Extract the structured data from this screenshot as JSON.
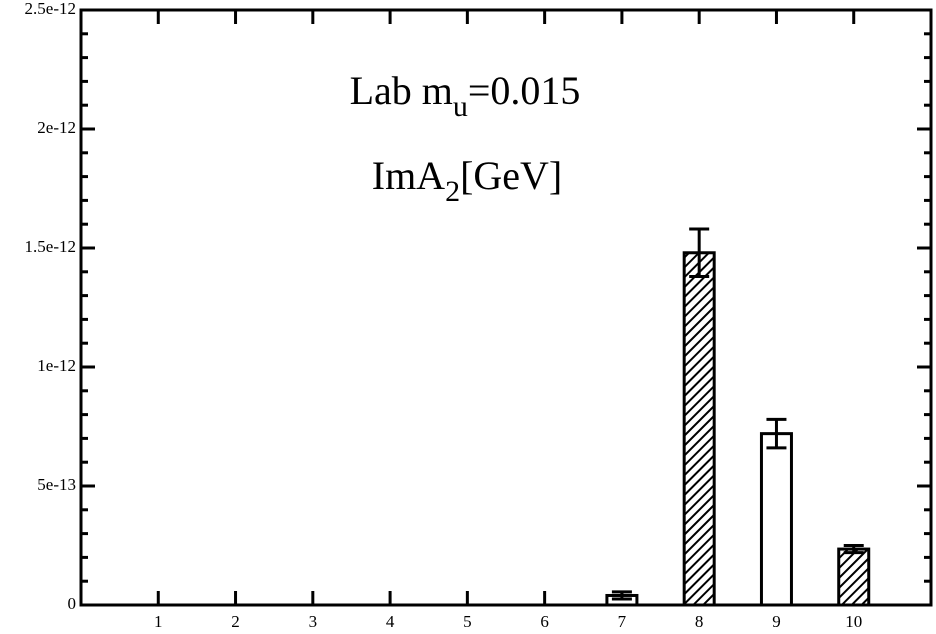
{
  "chart_data": {
    "type": "bar",
    "title": [
      "Lab m",
      "u",
      "=0.015"
    ],
    "subtitle": [
      "ImA",
      "2",
      "[GeV]"
    ],
    "categories": [
      1,
      2,
      3,
      4,
      5,
      6,
      7,
      8,
      9,
      10
    ],
    "values": [
      0,
      0,
      0,
      0,
      0,
      0,
      4e-14,
      1.48e-12,
      7.2e-13,
      2.35e-13
    ],
    "errors": [
      0,
      0,
      0,
      0,
      0,
      0,
      1.5e-14,
      1e-13,
      6e-14,
      1.5e-14
    ],
    "fill": [
      "none",
      "none",
      "none",
      "none",
      "none",
      "none",
      "none",
      "hatch",
      "none",
      "hatch"
    ],
    "color": "#000000",
    "xlim": [
      0,
      11
    ],
    "xticks": [
      1,
      2,
      3,
      4,
      5,
      6,
      7,
      8,
      9,
      10
    ],
    "ylim": [
      0,
      2.5e-12
    ],
    "yticks": [
      0,
      {
        "value": 5e-13,
        "label": "5e-13"
      },
      {
        "value": 1e-12,
        "label": "1e-12"
      },
      {
        "value": 1.5e-12,
        "label": "1.5e-12"
      },
      {
        "value": 2e-12,
        "label": "2e-12"
      },
      {
        "value": 2.5e-12,
        "label": "2.5e-12"
      }
    ]
  }
}
